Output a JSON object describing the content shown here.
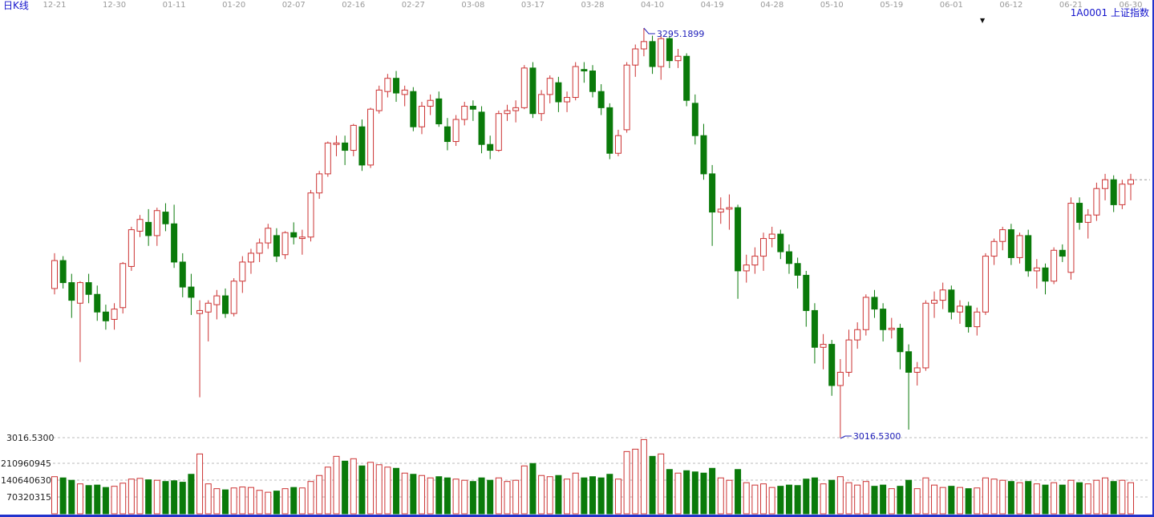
{
  "header": {
    "chart_type": "日K线",
    "symbol_title": "1A0001  上证指数",
    "dropdown_icon": "▼"
  },
  "chart_data": {
    "type": "candlestick_with_volume",
    "symbol": "1A0001",
    "index_name": "上证指数",
    "period_label": "日K线",
    "x_axis_labels": [
      "12-21",
      "12-30",
      "01-11",
      "01-20",
      "02-07",
      "02-16",
      "02-27",
      "03-08",
      "03-17",
      "03-28",
      "04-10",
      "04-19",
      "04-28",
      "05-10",
      "05-19",
      "06-01",
      "06-12",
      "06-21",
      "06-30"
    ],
    "label_every_n_candles": 7,
    "price_axis": {
      "max": 3295.19,
      "min": 3016.53
    },
    "price_annotations": {
      "high": "3295.1899",
      "low": "3016.5300"
    },
    "left_scale_labels": {
      "price_low": "3016.5300",
      "volume": [
        "210960945",
        "140640630",
        "70320315"
      ]
    },
    "volume_gridlines": [
      210960945,
      140640630,
      70320315
    ],
    "colors": {
      "up": "#cc3333",
      "down": "#0a7a0a",
      "annotation": "#2222bb",
      "grid": "#bbbbbb",
      "axis_text": "#999999",
      "header_blue": "#1515cc",
      "border": "#2233cc",
      "scale_text": "#222222"
    },
    "candles_format": [
      "open",
      "high",
      "low",
      "close",
      "volume"
    ],
    "candles": [
      [
        3118,
        3142,
        3114,
        3137,
        155000000
      ],
      [
        3137,
        3140,
        3118,
        3122,
        150000000
      ],
      [
        3122,
        3128,
        3098,
        3110,
        140000000
      ],
      [
        3108,
        3123,
        3068,
        3122,
        125000000
      ],
      [
        3122,
        3128,
        3108,
        3114,
        118000000
      ],
      [
        3114,
        3120,
        3096,
        3102,
        120000000
      ],
      [
        3102,
        3107,
        3090,
        3096,
        110000000
      ],
      [
        3097,
        3108,
        3090,
        3104,
        115000000
      ],
      [
        3105,
        3136,
        3101,
        3135,
        128000000
      ],
      [
        3133,
        3160,
        3130,
        3158,
        145000000
      ],
      [
        3157,
        3168,
        3153,
        3165,
        148000000
      ],
      [
        3163,
        3172,
        3147,
        3154,
        142000000
      ],
      [
        3154,
        3173,
        3147,
        3171,
        140000000
      ],
      [
        3170,
        3176,
        3157,
        3162,
        135000000
      ],
      [
        3162,
        3175,
        3132,
        3136,
        138000000
      ],
      [
        3136,
        3142,
        3112,
        3119,
        132000000
      ],
      [
        3119,
        3128,
        3100,
        3112,
        165000000
      ],
      [
        3101,
        3110,
        3044,
        3103,
        250000000
      ],
      [
        3102,
        3110,
        3082,
        3108,
        125000000
      ],
      [
        3107,
        3117,
        3097,
        3113,
        105000000
      ],
      [
        3113,
        3118,
        3098,
        3101,
        100000000
      ],
      [
        3101,
        3125,
        3099,
        3123,
        108000000
      ],
      [
        3123,
        3140,
        3115,
        3136,
        112000000
      ],
      [
        3136,
        3145,
        3128,
        3142,
        110000000
      ],
      [
        3142,
        3152,
        3136,
        3149,
        98000000
      ],
      [
        3149,
        3162,
        3145,
        3159,
        90000000
      ],
      [
        3154,
        3159,
        3136,
        3140,
        95000000
      ],
      [
        3141,
        3157,
        3138,
        3156,
        105000000
      ],
      [
        3156,
        3163,
        3148,
        3153,
        110000000
      ],
      [
        3152,
        3158,
        3141,
        3153,
        108000000
      ],
      [
        3153,
        3185,
        3150,
        3183,
        135000000
      ],
      [
        3183,
        3198,
        3179,
        3196,
        160000000
      ],
      [
        3196,
        3218,
        3194,
        3217,
        195000000
      ],
      [
        3216,
        3222,
        3208,
        3217,
        240000000
      ],
      [
        3217,
        3222,
        3202,
        3212,
        220000000
      ],
      [
        3212,
        3230,
        3208,
        3229,
        230000000
      ],
      [
        3228,
        3233,
        3198,
        3202,
        200000000
      ],
      [
        3202,
        3241,
        3200,
        3240,
        215000000
      ],
      [
        3239,
        3256,
        3237,
        3253,
        205000000
      ],
      [
        3252,
        3264,
        3248,
        3261,
        195000000
      ],
      [
        3261,
        3266,
        3245,
        3251,
        190000000
      ],
      [
        3250,
        3256,
        3242,
        3253,
        170000000
      ],
      [
        3252,
        3255,
        3225,
        3228,
        165000000
      ],
      [
        3228,
        3245,
        3223,
        3242,
        160000000
      ],
      [
        3242,
        3250,
        3236,
        3246,
        150000000
      ],
      [
        3247,
        3252,
        3228,
        3230,
        155000000
      ],
      [
        3228,
        3234,
        3212,
        3218,
        150000000
      ],
      [
        3218,
        3236,
        3215,
        3233,
        145000000
      ],
      [
        3233,
        3245,
        3229,
        3242,
        140000000
      ],
      [
        3242,
        3246,
        3232,
        3240,
        135000000
      ],
      [
        3238,
        3242,
        3210,
        3216,
        150000000
      ],
      [
        3216,
        3222,
        3206,
        3212,
        140000000
      ],
      [
        3212,
        3239,
        3211,
        3237,
        150000000
      ],
      [
        3237,
        3243,
        3232,
        3239,
        135000000
      ],
      [
        3239,
        3246,
        3231,
        3241,
        140000000
      ],
      [
        3241,
        3270,
        3240,
        3268,
        200000000
      ],
      [
        3268,
        3272,
        3234,
        3237,
        210000000
      ],
      [
        3237,
        3253,
        3232,
        3250,
        160000000
      ],
      [
        3250,
        3263,
        3244,
        3261,
        155000000
      ],
      [
        3258,
        3262,
        3238,
        3245,
        160000000
      ],
      [
        3245,
        3252,
        3238,
        3248,
        145000000
      ],
      [
        3248,
        3272,
        3246,
        3269,
        170000000
      ],
      [
        3267,
        3272,
        3258,
        3266,
        150000000
      ],
      [
        3266,
        3270,
        3248,
        3252,
        155000000
      ],
      [
        3252,
        3257,
        3236,
        3241,
        150000000
      ],
      [
        3241,
        3244,
        3206,
        3210,
        165000000
      ],
      [
        3210,
        3226,
        3208,
        3222,
        145000000
      ],
      [
        3226,
        3272,
        3224,
        3270,
        260000000
      ],
      [
        3270,
        3284,
        3262,
        3281,
        270000000
      ],
      [
        3281,
        3295.19,
        3276,
        3286,
        310000000
      ],
      [
        3286,
        3290,
        3264,
        3269,
        240000000
      ],
      [
        3269,
        3291,
        3260,
        3288,
        250000000
      ],
      [
        3288,
        3290,
        3268,
        3273,
        185000000
      ],
      [
        3273,
        3281,
        3268,
        3276,
        170000000
      ],
      [
        3276,
        3278,
        3242,
        3246,
        180000000
      ],
      [
        3244,
        3250,
        3216,
        3222,
        175000000
      ],
      [
        3222,
        3230,
        3192,
        3196,
        170000000
      ],
      [
        3196,
        3202,
        3147,
        3170,
        190000000
      ],
      [
        3170,
        3180,
        3162,
        3172,
        150000000
      ],
      [
        3172,
        3182,
        3158,
        3173,
        140000000
      ],
      [
        3173,
        3175,
        3111,
        3130,
        185000000
      ],
      [
        3130,
        3141,
        3122,
        3134,
        130000000
      ],
      [
        3134,
        3146,
        3128,
        3140,
        120000000
      ],
      [
        3140,
        3156,
        3130,
        3152,
        125000000
      ],
      [
        3152,
        3160,
        3146,
        3155,
        110000000
      ],
      [
        3155,
        3158,
        3138,
        3143,
        115000000
      ],
      [
        3143,
        3148,
        3128,
        3135,
        120000000
      ],
      [
        3135,
        3139,
        3118,
        3127,
        118000000
      ],
      [
        3127,
        3130,
        3092,
        3103,
        145000000
      ],
      [
        3103,
        3108,
        3067,
        3078,
        150000000
      ],
      [
        3078,
        3087,
        3063,
        3080,
        125000000
      ],
      [
        3080,
        3083,
        3045,
        3052,
        140000000
      ],
      [
        3052,
        3070,
        3016.53,
        3061,
        155000000
      ],
      [
        3061,
        3090,
        3058,
        3083,
        130000000
      ],
      [
        3083,
        3095,
        3077,
        3090,
        120000000
      ],
      [
        3090,
        3114,
        3086,
        3112,
        135000000
      ],
      [
        3112,
        3117,
        3098,
        3104,
        115000000
      ],
      [
        3104,
        3108,
        3082,
        3090,
        120000000
      ],
      [
        3090,
        3098,
        3084,
        3091,
        105000000
      ],
      [
        3091,
        3094,
        3063,
        3075,
        115000000
      ],
      [
        3075,
        3080,
        3022,
        3061,
        140000000
      ],
      [
        3061,
        3068,
        3052,
        3064,
        105000000
      ],
      [
        3064,
        3110,
        3062,
        3108,
        150000000
      ],
      [
        3108,
        3116,
        3098,
        3110,
        120000000
      ],
      [
        3110,
        3122,
        3104,
        3117,
        110000000
      ],
      [
        3117,
        3120,
        3097,
        3102,
        115000000
      ],
      [
        3102,
        3110,
        3094,
        3106,
        110000000
      ],
      [
        3106,
        3109,
        3088,
        3092,
        105000000
      ],
      [
        3092,
        3105,
        3086,
        3102,
        108000000
      ],
      [
        3102,
        3142,
        3100,
        3140,
        150000000
      ],
      [
        3140,
        3152,
        3134,
        3150,
        145000000
      ],
      [
        3150,
        3160,
        3144,
        3158,
        140000000
      ],
      [
        3158,
        3162,
        3134,
        3139,
        135000000
      ],
      [
        3139,
        3156,
        3135,
        3154,
        130000000
      ],
      [
        3154,
        3158,
        3126,
        3130,
        135000000
      ],
      [
        3130,
        3138,
        3118,
        3132,
        125000000
      ],
      [
        3132,
        3135,
        3114,
        3123,
        120000000
      ],
      [
        3123,
        3146,
        3121,
        3144,
        130000000
      ],
      [
        3144,
        3148,
        3136,
        3140,
        120000000
      ],
      [
        3129,
        3180,
        3124,
        3176,
        140000000
      ],
      [
        3176,
        3180,
        3158,
        3163,
        130000000
      ],
      [
        3163,
        3172,
        3152,
        3168,
        125000000
      ],
      [
        3168,
        3190,
        3164,
        3186,
        140000000
      ],
      [
        3186,
        3196,
        3178,
        3192,
        150000000
      ],
      [
        3192,
        3195,
        3170,
        3175,
        135000000
      ],
      [
        3175,
        3192,
        3172,
        3189,
        140000000
      ],
      [
        3189,
        3196,
        3178,
        3192,
        130000000
      ]
    ]
  }
}
